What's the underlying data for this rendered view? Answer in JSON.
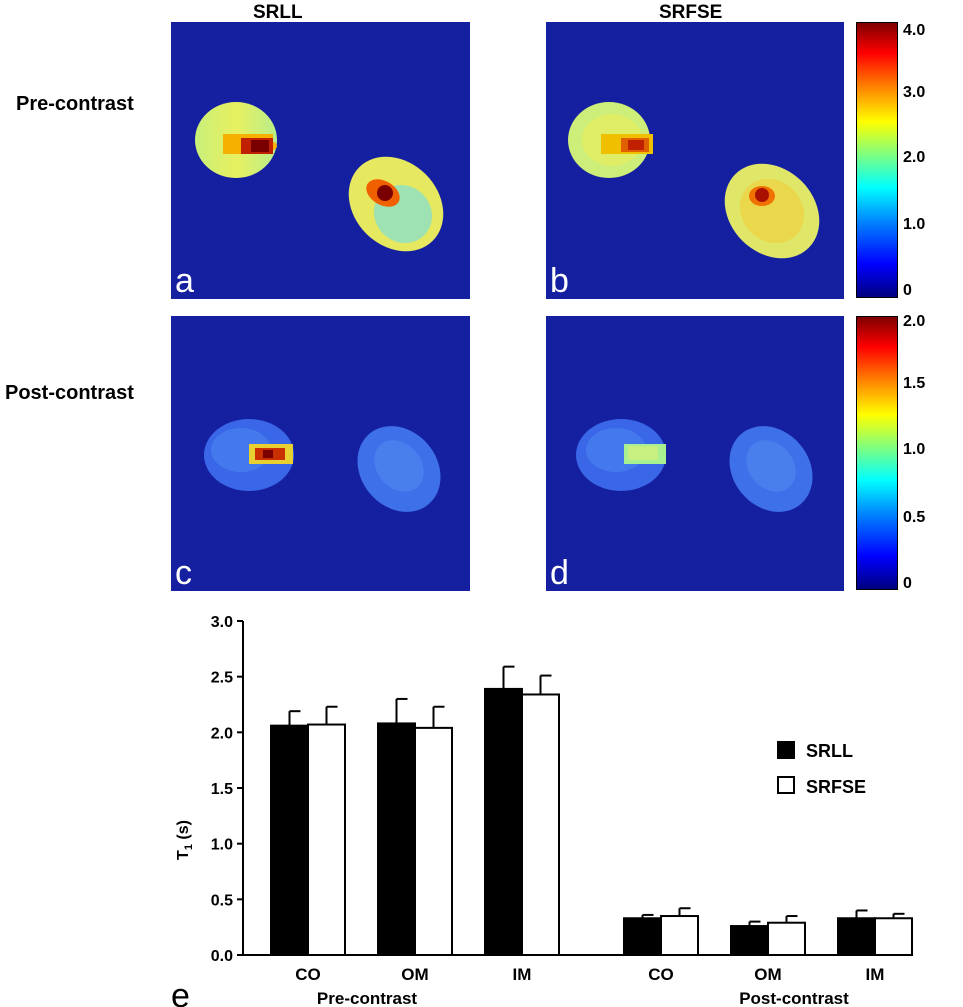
{
  "column_titles": [
    "SRLL",
    "SRFSE"
  ],
  "row_titles": [
    "Pre-contrast",
    "Post-contrast"
  ],
  "panel_letters": [
    "a",
    "b",
    "c",
    "d",
    "e"
  ],
  "colorbars": [
    {
      "name": "pre",
      "labels": [
        "4.0",
        "3.0",
        "2.0",
        "1.0",
        "0"
      ]
    },
    {
      "name": "post",
      "labels": [
        "2.0",
        "1.5",
        "1.0",
        "0.5",
        "0"
      ]
    }
  ],
  "colors": {
    "map_background": "#1520a0",
    "srll_fill": "#000000",
    "srfse_fill": "#ffffff",
    "jet": [
      "#00007f",
      "#0000ff",
      "#007fff",
      "#00ffff",
      "#7fff7f",
      "#ffff00",
      "#ff7f00",
      "#ff0000",
      "#7f0000"
    ]
  },
  "chart_data": {
    "type": "bar",
    "ylabel_main": "T",
    "ylabel_sub": "1",
    "ylabel_unit": " (s)",
    "ylim": [
      0,
      3.0
    ],
    "yticks": [
      "0.0",
      "0.5",
      "1.0",
      "1.5",
      "2.0",
      "2.5",
      "3.0"
    ],
    "ytick_values": [
      0,
      0.5,
      1.0,
      1.5,
      2.0,
      2.5,
      3.0
    ],
    "categories": [
      "CO",
      "OM",
      "IM",
      "CO",
      "OM",
      "IM"
    ],
    "group_labels": [
      "Pre-contrast",
      "Post-contrast"
    ],
    "series": [
      {
        "name": "SRLL",
        "values": [
          2.06,
          2.08,
          2.39,
          0.33,
          0.26,
          0.33
        ],
        "errors": [
          0.13,
          0.22,
          0.2,
          0.03,
          0.04,
          0.07
        ]
      },
      {
        "name": "SRFSE",
        "values": [
          2.07,
          2.04,
          2.34,
          0.35,
          0.29,
          0.33
        ],
        "errors": [
          0.16,
          0.19,
          0.17,
          0.07,
          0.06,
          0.04
        ]
      }
    ],
    "legend_position": "right"
  }
}
